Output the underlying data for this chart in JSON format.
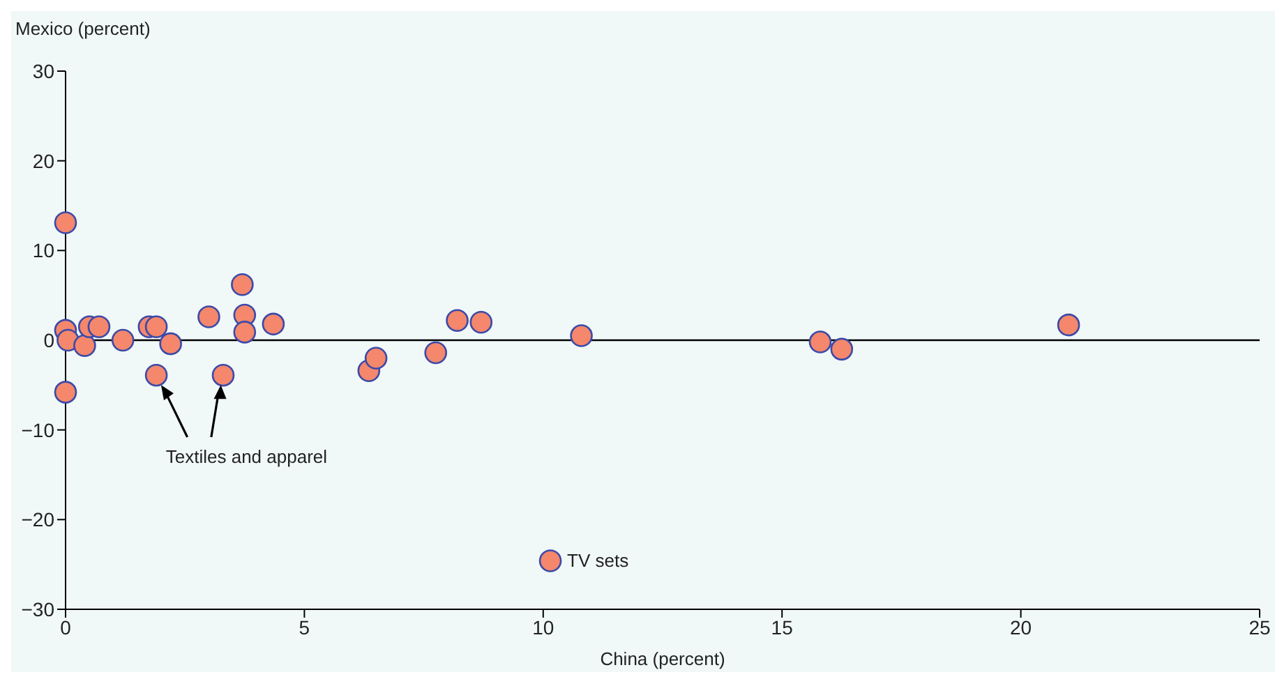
{
  "chart_data": {
    "type": "scatter",
    "xlabel": "China (percent)",
    "ylabel": "Mexico (percent)",
    "x": [
      0,
      0,
      0.05,
      0,
      0.4,
      0.5,
      0.7,
      1.2,
      1.75,
      1.9,
      1.9,
      2.2,
      3.0,
      3.7,
      3.75,
      3.75,
      4.35,
      3.3,
      6.35,
      6.5,
      7.75,
      8.2,
      8.7,
      10.8,
      10.15,
      15.8,
      16.25,
      21.0
    ],
    "values": [
      13.1,
      1.1,
      0,
      -5.8,
      -0.6,
      1.5,
      1.5,
      0,
      1.5,
      1.5,
      -3.9,
      -0.4,
      2.6,
      6.2,
      2.8,
      0.9,
      1.8,
      -3.9,
      -3.4,
      -2.0,
      -1.4,
      2.2,
      2.0,
      0.5,
      -24.6,
      -0.2,
      -1.0,
      1.7
    ],
    "color": "#f4876c",
    "marker": "circle",
    "xlim": [
      0,
      25
    ],
    "xticks": [
      0,
      5,
      10,
      15,
      20,
      25
    ],
    "ylim": [
      -30,
      30
    ],
    "yticks": [
      -30,
      -20,
      -10,
      0,
      10,
      20,
      30
    ],
    "grid": false,
    "legend": false,
    "ref_lines": [
      {
        "axis": "y",
        "value": 0,
        "color": "#000000"
      }
    ],
    "annotations": [
      "Textiles and apparel",
      {
        "text": "TV sets",
        "x": 10.15,
        "y": -24.6
      }
    ]
  }
}
